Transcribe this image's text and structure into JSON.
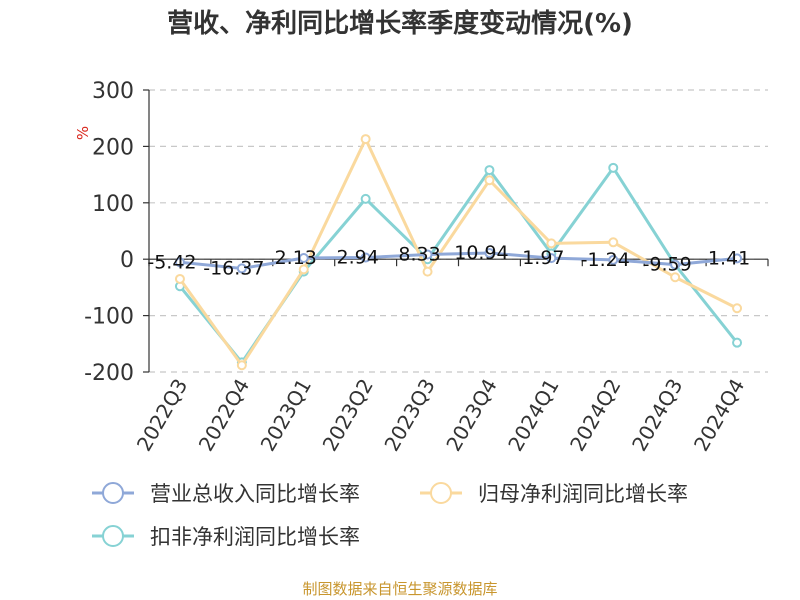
{
  "chart_data": {
    "type": "line",
    "title": "营收、净利同比增长率季度变动情况(%)",
    "ylabel": "%",
    "categories": [
      "2022Q3",
      "2022Q4",
      "2023Q1",
      "2023Q2",
      "2023Q3",
      "2023Q4",
      "2024Q1",
      "2024Q2",
      "2024Q3",
      "2024Q4"
    ],
    "yticks": [
      300,
      200,
      100,
      0,
      -100,
      -200
    ],
    "ylim": [
      -200,
      300
    ],
    "grid": true,
    "legend_position": "bottom",
    "series": [
      {
        "name": "营业总收入同比增长率",
        "color": "#8fa8d8",
        "values": [
          -5.42,
          -16.37,
          2.13,
          2.94,
          8.33,
          10.94,
          1.97,
          -1.24,
          -9.59,
          1.41
        ],
        "labels": [
          "-5.42",
          "-16.37",
          "2.13",
          "2.94",
          "8.33",
          "10.94",
          "1.97",
          "-1.24",
          "-9.59",
          "1.41"
        ]
      },
      {
        "name": "归母净利润同比增长率",
        "color": "#fad99e",
        "values": [
          -35,
          -188,
          -18,
          213,
          -22,
          140,
          28,
          30,
          -32,
          -87
        ]
      },
      {
        "name": "扣非净利润同比增长率",
        "color": "#86d2d4",
        "values": [
          -48,
          -183,
          -22,
          107,
          0,
          158,
          10,
          162,
          -10,
          -148
        ]
      }
    ],
    "source": "制图数据来自恒生聚源数据库"
  }
}
